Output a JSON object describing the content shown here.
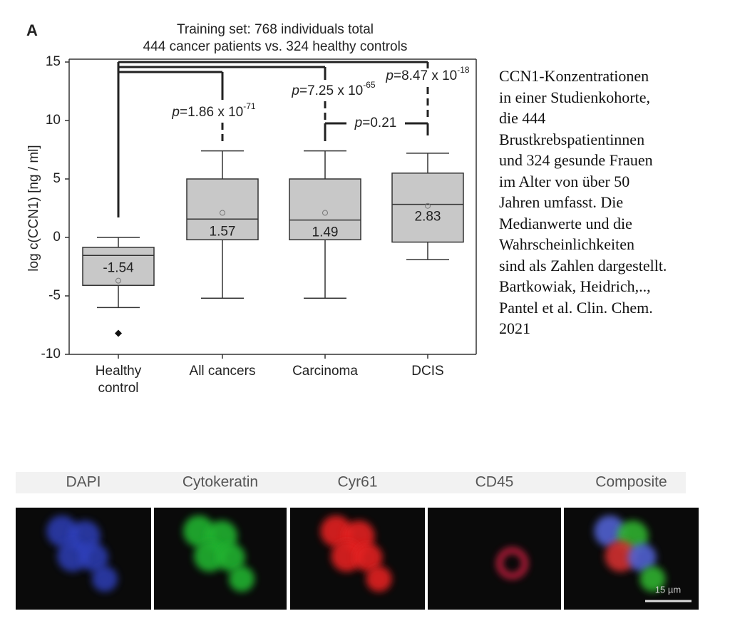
{
  "chart_data": {
    "type": "box",
    "panel_label": "A",
    "title": [
      "Training set: 768 individuals total",
      "444 cancer patients vs. 324 healthy controls"
    ],
    "y_label": "log c(CCN1) [ng / ml]",
    "categories": [
      "Healthy\ncontrol",
      "All cancers",
      "Carcinoma",
      "DCIS"
    ],
    "color": "#c8c8c8",
    "ylim": [
      -10,
      15
    ],
    "yticks": [
      -10,
      -5,
      0,
      5,
      10,
      15
    ],
    "boxes": [
      {
        "whisker_low": -6.0,
        "q1": -4.1,
        "median": -1.54,
        "q3": -0.85,
        "whisker_high": 0,
        "mean": -3.7,
        "outliers": [
          -8.2
        ]
      },
      {
        "whisker_low": -5.2,
        "q1": -0.2,
        "median": 1.57,
        "q3": 5.0,
        "whisker_high": 7.4,
        "mean": 2.1,
        "outliers": []
      },
      {
        "whisker_low": -5.2,
        "q1": -0.2,
        "median": 1.49,
        "q3": 5.0,
        "whisker_high": 7.4,
        "mean": 2.1,
        "outliers": []
      },
      {
        "whisker_low": -1.9,
        "q1": -0.4,
        "median": 2.83,
        "q3": 5.5,
        "whisker_high": 7.2,
        "mean": 2.7,
        "outliers": []
      }
    ],
    "annotations": [
      {
        "prefix": "p",
        "text": "=1.86 x 10",
        "exponent": "-71"
      },
      {
        "prefix": "p",
        "text": "=7.25 x 10",
        "exponent": "-65"
      },
      {
        "prefix": "p",
        "text": "=8.47 x 10",
        "exponent": "-18"
      },
      {
        "prefix": "p",
        "text": "=0.21"
      }
    ]
  },
  "caption": [
    "CCN1-Konzentrationen",
    "in einer Studienkohorte,",
    "die 444",
    "Brustkrebspatientinnen",
    "und 324 gesunde Frauen",
    "im Alter von über 50",
    "Jahren umfasst. Die",
    "Medianwerte und die",
    "Wahrscheinlichkeiten",
    "sind als Zahlen dargestellt.",
    "Bartkowiak, Heidrich,..,",
    "Pantel et al. Clin. Chem.",
    "2021"
  ],
  "microscopy": {
    "channels": [
      "DAPI",
      "Cytokeratin",
      "Cyr61",
      "CD45",
      "Composite"
    ],
    "scale_bar": "15 µm"
  }
}
